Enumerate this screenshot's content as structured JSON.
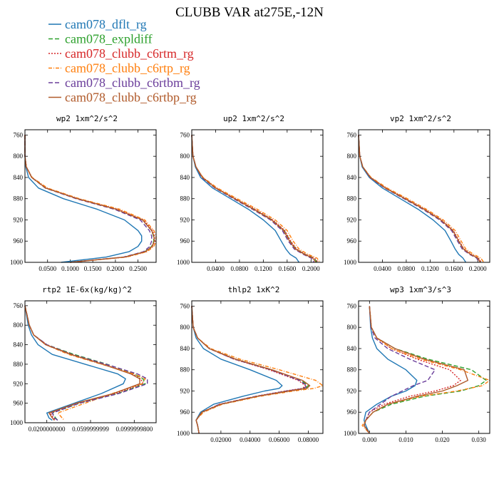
{
  "chart_data": {
    "title": "CLUBB VAR at275E,-12N",
    "legend": [
      {
        "name": "cam078_dflt_rg",
        "color": "#1f77b4",
        "dash": ""
      },
      {
        "name": "cam078_expldiff",
        "color": "#2ca02c",
        "dash": "6,3"
      },
      {
        "name": "cam078_clubb_c6rtm_rg",
        "color": "#d62728",
        "dash": "2,2"
      },
      {
        "name": "cam078_clubb_c6rtp_rg",
        "color": "#ff7f0e",
        "dash": "5,2,1,2"
      },
      {
        "name": "cam078_clubb_c6rtbm_rg",
        "color": "#6a3d9a",
        "dash": "6,3"
      },
      {
        "name": "cam078_clubb_c6rtbp_rg",
        "color": "#b05a2a",
        "dash": ""
      }
    ],
    "panels": [
      {
        "type": "line",
        "title": "wp2  1xm^2/s^2",
        "xlim": [
          0,
          0.29
        ],
        "ylim": [
          1000,
          750
        ],
        "yticks": [
          760,
          800,
          840,
          880,
          920,
          960,
          1000
        ],
        "xticks": [
          0.05,
          0.1,
          0.15,
          0.2,
          0.25
        ],
        "xticklabels": [
          "0.0500",
          "0.1000",
          "0.1500",
          "0.2000",
          "0.2500"
        ],
        "y": [
          760,
          800,
          820,
          840,
          860,
          880,
          900,
          920,
          940,
          950,
          960,
          970,
          980,
          990,
          1000
        ],
        "series": [
          {
            "values": [
              0,
              0,
              0.002,
              0.008,
              0.03,
              0.085,
              0.16,
              0.22,
              0.25,
              0.258,
              0.258,
              0.25,
              0.23,
              0.18,
              0.08
            ]
          },
          {
            "values": [
              0,
              0,
              0.003,
              0.015,
              0.045,
              0.115,
              0.2,
              0.26,
              0.28,
              0.284,
              0.285,
              0.28,
              0.265,
              0.22,
              0.1
            ]
          },
          {
            "values": [
              0,
              0,
              0.003,
              0.015,
              0.047,
              0.117,
              0.205,
              0.262,
              0.282,
              0.286,
              0.287,
              0.282,
              0.268,
              0.222,
              0.1
            ]
          },
          {
            "values": [
              0,
              0,
              0.003,
              0.016,
              0.05,
              0.12,
              0.21,
              0.265,
              0.285,
              0.29,
              0.29,
              0.285,
              0.27,
              0.225,
              0.1
            ]
          },
          {
            "values": [
              0,
              0,
              0.003,
              0.015,
              0.045,
              0.113,
              0.198,
              0.255,
              0.275,
              0.28,
              0.28,
              0.276,
              0.262,
              0.218,
              0.1
            ]
          },
          {
            "values": [
              0,
              0,
              0.003,
              0.015,
              0.046,
              0.116,
              0.202,
              0.26,
              0.28,
              0.285,
              0.286,
              0.281,
              0.266,
              0.221,
              0.1
            ]
          }
        ]
      },
      {
        "type": "line",
        "title": "up2  1xm^2/s^2",
        "xlim": [
          0,
          0.22
        ],
        "ylim": [
          1000,
          750
        ],
        "yticks": [
          760,
          800,
          840,
          880,
          920,
          960,
          1000
        ],
        "xticks": [
          0.04,
          0.08,
          0.12,
          0.16,
          0.2
        ],
        "xticklabels": [
          "0.0400",
          "0.0800",
          "0.1200",
          "0.1600",
          "0.2000"
        ],
        "y": [
          760,
          800,
          820,
          840,
          860,
          880,
          900,
          920,
          940,
          960,
          975,
          985,
          992,
          1000
        ],
        "series": [
          {
            "values": [
              0,
              0.002,
              0.006,
              0.015,
              0.035,
              0.065,
              0.095,
              0.12,
              0.14,
              0.15,
              0.158,
              0.165,
              0.175,
              0.18
            ]
          },
          {
            "values": [
              0,
              0.002,
              0.007,
              0.018,
              0.04,
              0.072,
              0.105,
              0.135,
              0.155,
              0.165,
              0.175,
              0.19,
              0.205,
              0.21
            ]
          },
          {
            "values": [
              0,
              0.002,
              0.007,
              0.018,
              0.041,
              0.073,
              0.106,
              0.136,
              0.156,
              0.166,
              0.176,
              0.191,
              0.206,
              0.212
            ]
          },
          {
            "values": [
              0,
              0.002,
              0.007,
              0.019,
              0.043,
              0.076,
              0.11,
              0.14,
              0.16,
              0.17,
              0.18,
              0.195,
              0.21,
              0.215
            ]
          },
          {
            "values": [
              0,
              0.002,
              0.007,
              0.017,
              0.039,
              0.07,
              0.102,
              0.132,
              0.152,
              0.162,
              0.172,
              0.187,
              0.2,
              0.205
            ]
          },
          {
            "values": [
              0,
              0.002,
              0.007,
              0.018,
              0.04,
              0.072,
              0.104,
              0.134,
              0.154,
              0.164,
              0.174,
              0.189,
              0.203,
              0.208
            ]
          }
        ]
      },
      {
        "type": "line",
        "title": "vp2  1xm^2/s^2",
        "xlim": [
          0,
          0.22
        ],
        "ylim": [
          1000,
          750
        ],
        "yticks": [
          760,
          800,
          840,
          880,
          920,
          960,
          1000
        ],
        "xticks": [
          0.04,
          0.08,
          0.12,
          0.16,
          0.2
        ],
        "xticklabels": [
          "0.0400",
          "0.0800",
          "0.1200",
          "0.1600",
          "0.2000"
        ],
        "y": [
          760,
          800,
          820,
          840,
          860,
          880,
          900,
          920,
          940,
          960,
          975,
          985,
          992,
          1000
        ],
        "series": [
          {
            "values": [
              0,
              0.002,
              0.006,
              0.018,
              0.04,
              0.07,
              0.1,
              0.125,
              0.145,
              0.155,
              0.162,
              0.168,
              0.175,
              0.18
            ]
          },
          {
            "values": [
              0,
              0.002,
              0.007,
              0.02,
              0.045,
              0.078,
              0.11,
              0.138,
              0.158,
              0.168,
              0.176,
              0.188,
              0.2,
              0.205
            ]
          },
          {
            "values": [
              0,
              0.002,
              0.007,
              0.02,
              0.046,
              0.079,
              0.111,
              0.139,
              0.159,
              0.169,
              0.177,
              0.189,
              0.201,
              0.206
            ]
          },
          {
            "values": [
              0,
              0.002,
              0.007,
              0.021,
              0.048,
              0.082,
              0.114,
              0.142,
              0.162,
              0.172,
              0.18,
              0.193,
              0.205,
              0.21
            ]
          },
          {
            "values": [
              0,
              0.002,
              0.007,
              0.019,
              0.044,
              0.076,
              0.108,
              0.136,
              0.156,
              0.166,
              0.174,
              0.186,
              0.198,
              0.202
            ]
          },
          {
            "values": [
              0,
              0.002,
              0.007,
              0.02,
              0.045,
              0.078,
              0.11,
              0.138,
              0.158,
              0.168,
              0.176,
              0.188,
              0.2,
              0.204
            ]
          }
        ]
      },
      {
        "type": "line",
        "title": "rtp2  1E-6x(kg/kg)^2",
        "xlim": [
          0,
          0.12
        ],
        "ylim": [
          1000,
          750
        ],
        "yticks": [
          760,
          800,
          840,
          880,
          920,
          960,
          1000
        ],
        "xticks": [
          0.02,
          0.06,
          0.1
        ],
        "xticklabels": [
          "0.0200000000",
          "0.0599999999",
          "0.0999999800"
        ],
        "y": [
          760,
          800,
          820,
          840,
          860,
          880,
          900,
          910,
          920,
          940,
          960,
          980,
          990,
          995
        ],
        "series": [
          {
            "values": [
              0,
              0.003,
              0.006,
              0.012,
              0.025,
              0.055,
              0.085,
              0.092,
              0.09,
              0.07,
              0.045,
              0.02,
              0.022,
              0.025
            ]
          },
          {
            "values": [
              0,
              0.004,
              0.008,
              0.02,
              0.045,
              0.075,
              0.1,
              0.108,
              0.11,
              0.085,
              0.05,
              0.025,
              0.028,
              0.03
            ]
          },
          {
            "values": [
              0,
              0.004,
              0.008,
              0.02,
              0.043,
              0.072,
              0.098,
              0.106,
              0.108,
              0.083,
              0.048,
              0.023,
              0.026,
              0.028
            ]
          },
          {
            "values": [
              0,
              0.004,
              0.008,
              0.019,
              0.04,
              0.07,
              0.1,
              0.11,
              0.107,
              0.08,
              0.055,
              0.03,
              0.034,
              0.036
            ]
          },
          {
            "values": [
              0,
              0.004,
              0.008,
              0.02,
              0.043,
              0.074,
              0.103,
              0.112,
              0.112,
              0.086,
              0.05,
              0.025,
              0.027,
              0.03
            ]
          },
          {
            "values": [
              0,
              0.004,
              0.008,
              0.019,
              0.042,
              0.071,
              0.097,
              0.105,
              0.105,
              0.081,
              0.047,
              0.022,
              0.025,
              0.027
            ]
          }
        ]
      },
      {
        "type": "line",
        "title": "thlp2  1xK^2",
        "xlim": [
          0,
          0.09
        ],
        "ylim": [
          1000,
          750
        ],
        "yticks": [
          760,
          800,
          840,
          880,
          920,
          960,
          1000
        ],
        "xticks": [
          0.02,
          0.04,
          0.06,
          0.08
        ],
        "xticklabels": [
          "0.02000",
          "0.04000",
          "0.06000",
          "0.08000"
        ],
        "y": [
          760,
          800,
          820,
          840,
          860,
          880,
          900,
          910,
          915,
          920,
          930,
          945,
          960,
          975,
          985,
          1000
        ],
        "series": [
          {
            "values": [
              0,
              0.001,
              0.003,
              0.008,
              0.02,
              0.04,
              0.058,
              0.062,
              0.06,
              0.05,
              0.035,
              0.015,
              0.006,
              0.003,
              0.004,
              0.005
            ]
          },
          {
            "values": [
              0,
              0.001,
              0.004,
              0.012,
              0.03,
              0.055,
              0.075,
              0.08,
              0.078,
              0.066,
              0.045,
              0.02,
              0.007,
              0.003,
              0.004,
              0.005
            ]
          },
          {
            "values": [
              0,
              0.001,
              0.004,
              0.012,
              0.029,
              0.053,
              0.073,
              0.078,
              0.076,
              0.064,
              0.044,
              0.019,
              0.007,
              0.003,
              0.004,
              0.005
            ]
          },
          {
            "values": [
              0,
              0.001,
              0.004,
              0.013,
              0.033,
              0.06,
              0.085,
              0.09,
              0.084,
              0.07,
              0.047,
              0.021,
              0.008,
              0.003,
              0.004,
              0.005
            ]
          },
          {
            "values": [
              0,
              0.001,
              0.004,
              0.012,
              0.029,
              0.054,
              0.074,
              0.079,
              0.077,
              0.065,
              0.044,
              0.019,
              0.007,
              0.003,
              0.004,
              0.005
            ]
          },
          {
            "values": [
              0,
              0.001,
              0.004,
              0.012,
              0.03,
              0.055,
              0.076,
              0.081,
              0.079,
              0.067,
              0.045,
              0.02,
              0.007,
              0.003,
              0.004,
              0.005
            ]
          }
        ]
      },
      {
        "type": "line",
        "title": "wp3  1xm^3/s^3",
        "xlim": [
          -0.003,
          0.033
        ],
        "ylim": [
          1000,
          750
        ],
        "yticks": [
          760,
          800,
          840,
          880,
          920,
          960,
          1000
        ],
        "xticks": [
          0,
          0.01,
          0.02,
          0.03
        ],
        "xticklabels": [
          "0.000",
          "0.010",
          "0.020",
          "0.030"
        ],
        "y": [
          760,
          800,
          820,
          840,
          860,
          880,
          900,
          910,
          920,
          930,
          945,
          960,
          975,
          985,
          1000
        ],
        "series": [
          {
            "values": [
              0,
              0.0003,
              0.0008,
              0.002,
              0.005,
              0.01,
              0.013,
              0.0125,
              0.01,
              0.006,
              0.002,
              -0.001,
              -0.0015,
              -0.001,
              0
            ]
          },
          {
            "values": [
              0,
              0.0005,
              0.002,
              0.007,
              0.016,
              0.028,
              0.032,
              0.03,
              0.025,
              0.015,
              0.006,
              0.001,
              -0.001,
              -0.0015,
              0
            ]
          },
          {
            "values": [
              0,
              0.0005,
              0.002,
              0.006,
              0.013,
              0.022,
              0.025,
              0.023,
              0.018,
              0.011,
              0.004,
              0,
              -0.001,
              -0.0015,
              0
            ]
          },
          {
            "values": [
              0,
              0.0005,
              0.002,
              0.006,
              0.014,
              0.025,
              0.033,
              0.031,
              0.024,
              0.014,
              0.005,
              0.001,
              -0.001,
              -0.002,
              0
            ]
          },
          {
            "values": [
              0,
              0.0004,
              0.0015,
              0.005,
              0.011,
              0.018,
              0.016,
              0.012,
              0.009,
              0.006,
              0.003,
              0,
              -0.001,
              -0.0015,
              0
            ]
          },
          {
            "values": [
              0,
              0.0005,
              0.002,
              0.007,
              0.015,
              0.026,
              0.027,
              0.024,
              0.02,
              0.013,
              0.005,
              0.001,
              -0.001,
              -0.0015,
              0
            ]
          }
        ]
      }
    ]
  }
}
